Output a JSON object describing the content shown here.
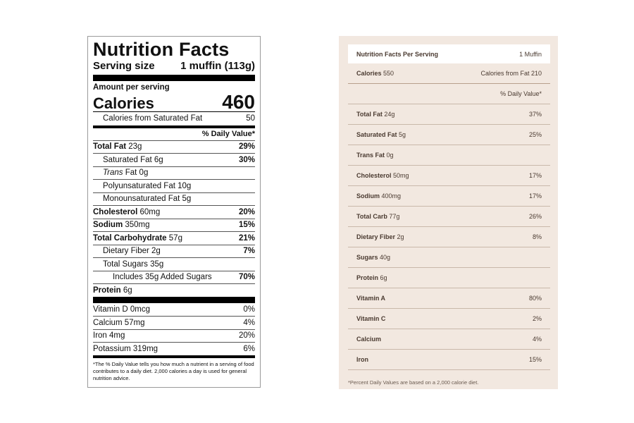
{
  "left_label": {
    "title": "Nutrition Facts",
    "serving_size_label": "Serving size",
    "serving_size_value": "1 muffin (113g)",
    "amount_per_serving": "Amount per serving",
    "calories_label": "Calories",
    "calories_value": "460",
    "sat_fat_calories_label": "Calories from Saturated Fat",
    "sat_fat_calories_value": "50",
    "daily_value_header": "% Daily Value*",
    "rows": [
      {
        "name": "Total Fat",
        "amount": "23g",
        "dv": "29%"
      },
      {
        "name": "Saturated Fat",
        "amount": "6g",
        "dv": "30%"
      },
      {
        "name": "Trans",
        "amount": "Fat 0g",
        "dv": ""
      },
      {
        "name": "Polyunsaturated Fat",
        "amount": "10g",
        "dv": ""
      },
      {
        "name": "Monounsaturated Fat",
        "amount": "5g",
        "dv": ""
      },
      {
        "name": "Cholesterol",
        "amount": "60mg",
        "dv": "20%"
      },
      {
        "name": "Sodium",
        "amount": "350mg",
        "dv": "15%"
      },
      {
        "name": "Total Carbohydrate",
        "amount": "57g",
        "dv": "21%"
      },
      {
        "name": "Dietary Fiber",
        "amount": "2g",
        "dv": "7%"
      },
      {
        "name": "Total Sugars",
        "amount": "35g",
        "dv": ""
      },
      {
        "name": "Includes 35g Added Sugars",
        "amount": "",
        "dv": "70%"
      },
      {
        "name": "Protein",
        "amount": "6g",
        "dv": ""
      }
    ],
    "vitamins": [
      {
        "name": "Vitamin D",
        "amount": "0mcg",
        "dv": "0%"
      },
      {
        "name": "Calcium",
        "amount": "57mg",
        "dv": "4%"
      },
      {
        "name": "Iron",
        "amount": "4mg",
        "dv": "20%"
      },
      {
        "name": "Potassium",
        "amount": "319mg",
        "dv": "6%"
      }
    ],
    "footnote": "*The % Daily Value tells you how much a nutrient in a serving of food contributes to a daily diet. 2,000 calories a day is used for general nutrition advice."
  },
  "right_label": {
    "header_title": "Nutrition Facts Per Serving",
    "header_value": "1 Muffin",
    "calories_label": "Calories",
    "calories_value": "550",
    "calories_from_fat": "Calories from Fat 210",
    "daily_value_header": "% Daily Value*",
    "rows": [
      {
        "name": "Total Fat",
        "amount": "24g",
        "dv": "37%"
      },
      {
        "name": "Saturated Fat",
        "amount": "5g",
        "dv": "25%"
      },
      {
        "name": "Trans Fat",
        "amount": "0g",
        "dv": ""
      },
      {
        "name": "Cholesterol",
        "amount": "50mg",
        "dv": "17%"
      },
      {
        "name": "Sodium",
        "amount": "400mg",
        "dv": "17%"
      },
      {
        "name": "Total Carb",
        "amount": "77g",
        "dv": "26%"
      },
      {
        "name": "Dietary Fiber",
        "amount": "2g",
        "dv": "8%"
      },
      {
        "name": "Sugars",
        "amount": "40g",
        "dv": ""
      },
      {
        "name": "Protein",
        "amount": "6g",
        "dv": ""
      },
      {
        "name": "Vitamin A",
        "amount": "",
        "dv": "80%"
      },
      {
        "name": "Vitamin C",
        "amount": "",
        "dv": "2%"
      },
      {
        "name": "Calcium",
        "amount": "",
        "dv": "4%"
      },
      {
        "name": "Iron",
        "amount": "",
        "dv": "15%"
      }
    ],
    "footnote": "*Percent Daily Values are based on a 2,000 calorie diet."
  }
}
